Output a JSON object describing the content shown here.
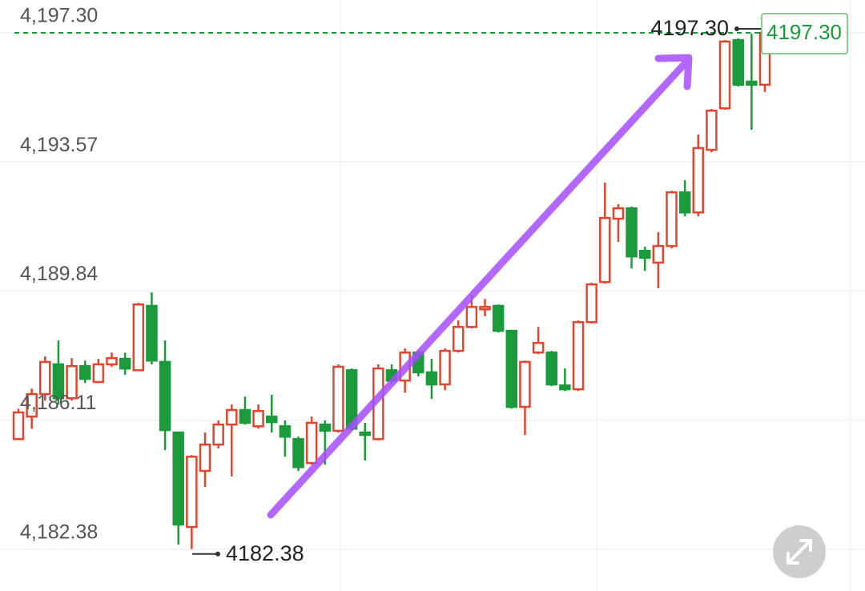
{
  "chart_data": {
    "type": "candlestick",
    "open": [
      4185.56,
      4186.21,
      4186.86,
      4187.72,
      4186.74,
      4187.67,
      4187.21,
      4187.72,
      4187.88,
      4187.55,
      4189.41,
      4187.79,
      4185.75,
      4183.02,
      4184.64,
      4185.4,
      4185.98,
      4186.4,
      4185.93,
      4186.21,
      4185.93,
      4185.56,
      4184.87,
      4185.98,
      4185.8,
      4187.55,
      4185.75,
      4185.56,
      4187.55,
      4187.25,
      4188.06,
      4187.49,
      4187.14,
      4188.11,
      4188.8,
      4189.31,
      4189.41,
      4188.69,
      4186.49,
      4188.06,
      4188.06,
      4187.11,
      4187.0,
      4188.94,
      4190.1,
      4191.93,
      4192.23,
      4191.0,
      4190.66,
      4191.14,
      4192.69,
      4192.11,
      4193.92,
      4195.12,
      4197.09,
      4195.89,
      4195.8
    ],
    "high": [
      4186.44,
      4187.02,
      4187.95,
      4188.41,
      4187.9,
      4187.83,
      4187.88,
      4188.06,
      4188.06,
      4189.5,
      4189.8,
      4188.41,
      4185.75,
      4185.1,
      4185.75,
      4186.1,
      4186.56,
      4186.79,
      4186.56,
      4186.84,
      4186.1,
      4185.63,
      4186.21,
      4186.1,
      4187.72,
      4187.6,
      4186.03,
      4187.72,
      4187.72,
      4188.18,
      4188.13,
      4187.88,
      4188.18,
      4188.99,
      4189.73,
      4189.61,
      4189.45,
      4188.71,
      4187.83,
      4188.8,
      4188.11,
      4187.6,
      4188.99,
      4190.08,
      4192.97,
      4192.35,
      4192.28,
      4191.12,
      4191.54,
      4192.74,
      4193.04,
      4194.36,
      4195.1,
      4197.09,
      4197.14,
      4197.28,
      4197.3
    ],
    "low": [
      4185.56,
      4185.86,
      4186.67,
      4186.56,
      4186.67,
      4187.18,
      4187.18,
      4187.65,
      4187.42,
      4187.55,
      4187.72,
      4185.24,
      4182.51,
      4182.38,
      4184.18,
      4185.29,
      4184.48,
      4185.98,
      4185.86,
      4185.75,
      4185.05,
      4184.64,
      4184.82,
      4184.82,
      4185.75,
      4185.8,
      4184.94,
      4185.52,
      4187.14,
      4186.9,
      4187.37,
      4186.72,
      4186.97,
      4188.06,
      4188.76,
      4189.11,
      4188.64,
      4186.44,
      4185.68,
      4188.02,
      4187.09,
      4186.95,
      4186.95,
      4188.9,
      4190.05,
      4191.26,
      4190.49,
      4190.42,
      4189.92,
      4191.07,
      4192.0,
      4192.0,
      4193.85,
      4195.08,
      4195.75,
      4194.5,
      4195.59
    ],
    "close": [
      4186.33,
      4186.86,
      4187.79,
      4186.74,
      4187.67,
      4187.3,
      4187.72,
      4187.9,
      4187.6,
      4189.45,
      4187.83,
      4185.82,
      4183.09,
      4185.05,
      4185.4,
      4185.98,
      4186.4,
      4186.03,
      4186.37,
      4186.05,
      4185.63,
      4184.75,
      4186.03,
      4185.8,
      4187.65,
      4185.86,
      4185.68,
      4187.6,
      4187.25,
      4188.06,
      4187.49,
      4187.14,
      4188.11,
      4188.8,
      4189.38,
      4189.38,
      4188.69,
      4186.49,
      4187.79,
      4188.34,
      4187.14,
      4187.0,
      4188.94,
      4190.03,
      4191.95,
      4192.23,
      4190.84,
      4190.8,
      4191.14,
      4192.69,
      4192.11,
      4193.97,
      4195.05,
      4197.05,
      4195.8,
      4195.8,
      4197.3
    ],
    "up_color": "#e0452f",
    "down_color": "#1a9a3a",
    "ylim": [
      4181.17,
      4198.25
    ],
    "yticks": [
      {
        "value": 4197.3,
        "label": "4,197.30"
      },
      {
        "value": 4193.57,
        "label": "4,193.57"
      },
      {
        "value": 4189.84,
        "label": "4,189.84"
      },
      {
        "value": 4186.11,
        "label": "4,186.11"
      },
      {
        "value": 4182.38,
        "label": "4,182.38"
      }
    ],
    "grid": true,
    "high_marker": {
      "value": 4197.3,
      "label": "4197.30"
    },
    "low_marker": {
      "value": 4182.38,
      "label": "4182.38"
    },
    "last_price": {
      "value": 4197.3,
      "label": "4197.30"
    }
  }
}
